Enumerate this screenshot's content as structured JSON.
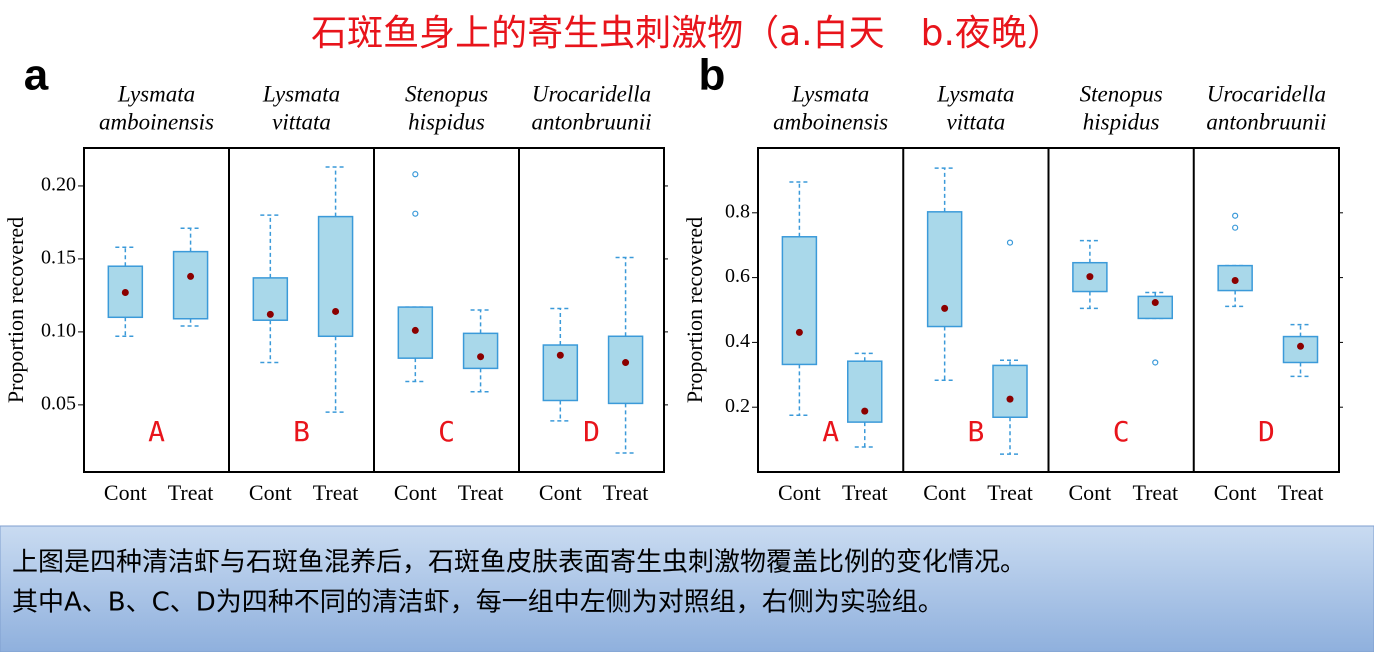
{
  "title": "石斑鱼身上的寄生虫刺激物（a.白天　b.夜晚）",
  "caption": [
    "上图是四种清洁虾与石斑鱼混养后，石斑鱼皮肤表面寄生虫刺激物覆盖比例的变化情况。",
    "其中A、B、C、D为四种不同的清洁虾，每一组中左侧为对照组，右侧为实验组。"
  ],
  "chart_data": [
    {
      "type": "box",
      "panel_label": "a",
      "y_label": "Proportion recovered",
      "ylim": [
        0.004,
        0.226
      ],
      "yticks": [
        0.05,
        {
          "value": 0.1,
          "label": "0.10"
        },
        0.15,
        {
          "value": 0.2,
          "label": "0.20"
        }
      ],
      "box_color": "#a9d8ea",
      "line_color": "#3b9ad9",
      "mean_color": "#8b0000",
      "letter_color": "#e8141b",
      "facets": [
        {
          "name": [
            "Lysmata",
            "amboinensis"
          ],
          "letter": "A",
          "categories": [
            "Cont",
            "Treat"
          ],
          "boxes": [
            {
              "whislo": 0.097,
              "q1": 0.11,
              "mean": 0.127,
              "q3": 0.145,
              "whishi": 0.158,
              "fliers": []
            },
            {
              "whislo": 0.104,
              "q1": 0.109,
              "mean": 0.138,
              "q3": 0.155,
              "whishi": 0.171,
              "fliers": []
            }
          ]
        },
        {
          "name": [
            "Lysmata",
            "vittata"
          ],
          "letter": "B",
          "categories": [
            "Cont",
            "Treat"
          ],
          "boxes": [
            {
              "whislo": 0.079,
              "q1": 0.108,
              "mean": 0.112,
              "q3": 0.137,
              "whishi": 0.18,
              "fliers": []
            },
            {
              "whislo": 0.045,
              "q1": 0.097,
              "mean": 0.114,
              "q3": 0.179,
              "whishi": 0.213,
              "fliers": []
            }
          ]
        },
        {
          "name": [
            "Stenopus",
            "hispidus"
          ],
          "letter": "C",
          "categories": [
            "Cont",
            "Treat"
          ],
          "boxes": [
            {
              "whislo": 0.066,
              "q1": 0.082,
              "mean": 0.101,
              "q3": 0.117,
              "whishi": 0.117,
              "fliers": [
                0.208,
                0.181
              ]
            },
            {
              "whislo": 0.059,
              "q1": 0.075,
              "mean": 0.083,
              "q3": 0.099,
              "whishi": 0.115,
              "fliers": []
            }
          ]
        },
        {
          "name": [
            "Urocaridella",
            "antonbruunii"
          ],
          "letter": "D",
          "categories": [
            "Cont",
            "Treat"
          ],
          "boxes": [
            {
              "whislo": 0.039,
              "q1": 0.053,
              "mean": 0.084,
              "q3": 0.091,
              "whishi": 0.116,
              "fliers": []
            },
            {
              "whislo": 0.017,
              "q1": 0.051,
              "mean": 0.079,
              "q3": 0.097,
              "whishi": 0.151,
              "fliers": []
            }
          ]
        }
      ]
    },
    {
      "type": "box",
      "panel_label": "b",
      "y_label": "Proportion recovered",
      "ylim": [
        0,
        1
      ],
      "yticks": [
        0.2,
        0.4,
        0.6,
        0.8
      ],
      "box_color": "#a9d8ea",
      "line_color": "#3b9ad9",
      "mean_color": "#8b0000",
      "letter_color": "#e8141b",
      "facets": [
        {
          "name": [
            "Lysmata",
            "amboinensis"
          ],
          "letter": "A",
          "categories": [
            "Cont",
            "Treat"
          ],
          "boxes": [
            {
              "whislo": 0.175,
              "q1": 0.332,
              "mean": 0.431,
              "q3": 0.726,
              "whishi": 0.895,
              "fliers": []
            },
            {
              "whislo": 0.077,
              "q1": 0.154,
              "mean": 0.188,
              "q3": 0.342,
              "whishi": 0.366,
              "fliers": []
            }
          ]
        },
        {
          "name": [
            "Lysmata",
            "vittata"
          ],
          "letter": "B",
          "categories": [
            "Cont",
            "Treat"
          ],
          "boxes": [
            {
              "whislo": 0.283,
              "q1": 0.449,
              "mean": 0.505,
              "q3": 0.803,
              "whishi": 0.938,
              "fliers": []
            },
            {
              "whislo": 0.055,
              "q1": 0.169,
              "mean": 0.225,
              "q3": 0.329,
              "whishi": 0.345,
              "fliers": [
                0.708
              ]
            }
          ]
        },
        {
          "name": [
            "Stenopus",
            "hispidus"
          ],
          "letter": "C",
          "categories": [
            "Cont",
            "Treat"
          ],
          "boxes": [
            {
              "whislo": 0.505,
              "q1": 0.557,
              "mean": 0.603,
              "q3": 0.646,
              "whishi": 0.714,
              "fliers": []
            },
            {
              "whislo": 0.474,
              "q1": 0.474,
              "mean": 0.523,
              "q3": 0.542,
              "whishi": 0.554,
              "fliers": [
                0.338
              ]
            }
          ]
        },
        {
          "name": [
            "Urocaridella",
            "antonbruunii"
          ],
          "letter": "D",
          "categories": [
            "Cont",
            "Treat"
          ],
          "boxes": [
            {
              "whislo": 0.511,
              "q1": 0.56,
              "mean": 0.591,
              "q3": 0.637,
              "whishi": 0.637,
              "fliers": [
                0.791,
                0.754
              ]
            },
            {
              "whislo": 0.295,
              "q1": 0.338,
              "mean": 0.388,
              "q3": 0.418,
              "whishi": 0.455,
              "fliers": []
            }
          ]
        }
      ]
    }
  ]
}
